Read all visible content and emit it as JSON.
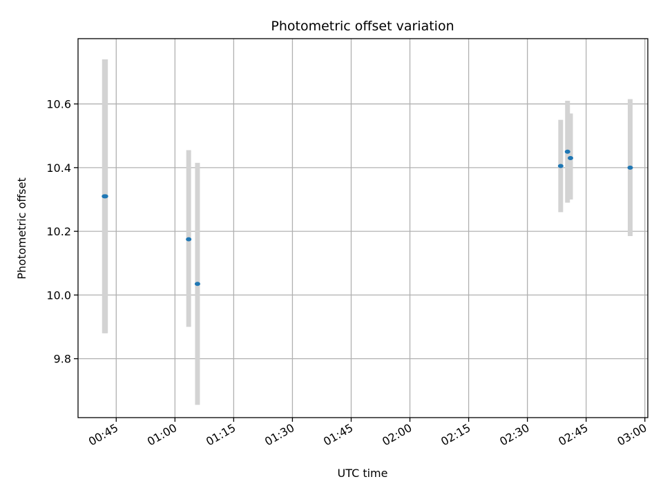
{
  "chart_data": {
    "type": "scatter",
    "title": "Photometric offset variation",
    "xlabel": "UTC time",
    "ylabel": "Photometric offset",
    "grid": true,
    "x_tick_labels": [
      "00:45",
      "01:00",
      "01:15",
      "01:30",
      "01:45",
      "02:00",
      "02:15",
      "02:30",
      "02:45",
      "03:00"
    ],
    "y_tick_labels": [
      "9.8",
      "10.0",
      "10.2",
      "10.4",
      "10.6"
    ],
    "xlim": [
      "00:35:15",
      "03:00:45"
    ],
    "ylim": [
      9.615,
      10.805
    ],
    "marker_color": "#1f77b4",
    "errorbar_color": "#d3d3d3",
    "series": [
      {
        "points": [
          {
            "x": "00:42:00",
            "y": 10.31,
            "ylow": 9.88,
            "yhigh": 10.74
          },
          {
            "x": "00:42:15",
            "y": 10.31,
            "ylow": 9.88,
            "yhigh": 10.74
          },
          {
            "x": "01:03:30",
            "y": 10.175,
            "ylow": 9.9,
            "yhigh": 10.455
          },
          {
            "x": "01:05:45",
            "y": 10.035,
            "ylow": 9.655,
            "yhigh": 10.415
          },
          {
            "x": "02:38:30",
            "y": 10.405,
            "ylow": 10.26,
            "yhigh": 10.55
          },
          {
            "x": "02:40:15",
            "y": 10.45,
            "ylow": 10.29,
            "yhigh": 10.61
          },
          {
            "x": "02:41:00",
            "y": 10.43,
            "ylow": 10.3,
            "yhigh": 10.57
          },
          {
            "x": "02:56:15",
            "y": 10.4,
            "ylow": 10.185,
            "yhigh": 10.615
          }
        ]
      }
    ]
  }
}
